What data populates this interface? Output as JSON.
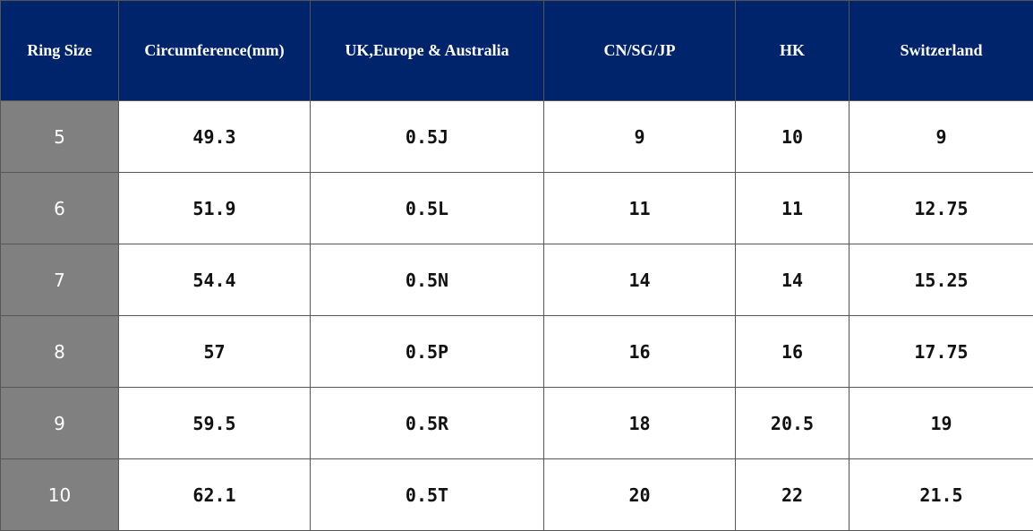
{
  "table": {
    "header": [
      "Ring Size",
      "Circumference(mm)",
      "UK,Europe & Australia",
      "CN/SG/JP",
      "HK",
      "Switzerland"
    ],
    "rows": [
      [
        "5",
        "49.3",
        "0.5J",
        "9",
        "10",
        "9"
      ],
      [
        "6",
        "51.9",
        "0.5L",
        "11",
        "11",
        "12.75"
      ],
      [
        "7",
        "54.4",
        "0.5N",
        "14",
        "14",
        "15.25"
      ],
      [
        "8",
        "57",
        "0.5P",
        "16",
        "16",
        "17.75"
      ],
      [
        "9",
        "59.5",
        "0.5R",
        "18",
        "20.5",
        "19"
      ],
      [
        "10",
        "62.1",
        "0.5T",
        "20",
        "22",
        "21.5"
      ]
    ]
  }
}
